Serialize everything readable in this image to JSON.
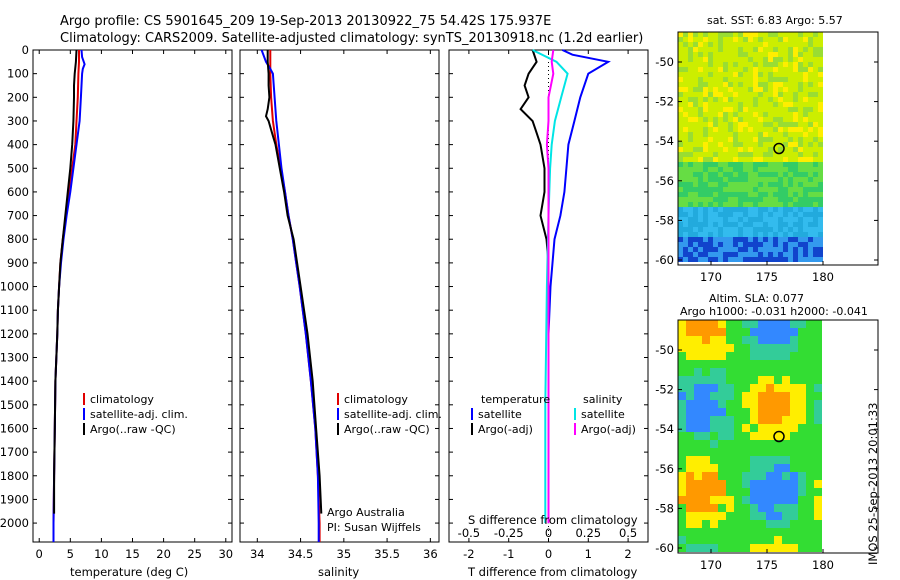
{
  "titles": {
    "line1": "Argo profile: CS 5901645_209 19-Sep-2013 20130922_75 54.42S 175.937E",
    "line2": "Climatology: CARS2009. Satellite-adjusted climatology: synTS_20130918.nc (1.2d earlier)"
  },
  "colors": {
    "climatology": "#e00000",
    "satellite": "#0000ff",
    "argo": "#000000",
    "sat_salinity": "#00e5e5",
    "argo_salinity": "#ff00ff"
  },
  "depth_ticks": [
    "0",
    "100",
    "200",
    "300",
    "400",
    "500",
    "600",
    "700",
    "800",
    "900",
    "1000",
    "1100",
    "1200",
    "1300",
    "1400",
    "1500",
    "1600",
    "1700",
    "1800",
    "1900",
    "2000"
  ],
  "legend": {
    "climatology": "climatology",
    "satellite": "satellite-adj. clim.",
    "argo": "Argo(..raw -QC)"
  },
  "info": {
    "line1": "Argo Australia",
    "line2": "PI: Susan Wijffels"
  },
  "diff_legend": {
    "temperature": "temperature",
    "salinity": "salinity",
    "t_sat": "satellite",
    "t_argo": "Argo(-adj)",
    "s_sat": "satellite",
    "s_argo": "Argo(-adj)"
  },
  "maps": {
    "sst_title": "sat. SST: 6.83 Argo: 5.57",
    "sla_title1": "Altim. SLA: 0.077",
    "sla_title2": "Argo h1000: -0.031 h2000: -0.041",
    "lat_ticks": [
      "-50",
      "-52",
      "-54",
      "-56",
      "-58",
      "-60"
    ],
    "lon_ticks": [
      "170",
      "175",
      "180"
    ]
  },
  "timestamp": "IMOS 25-Sep-2013 20:01:33",
  "chart_data": [
    {
      "type": "line",
      "xlabel": "temperature (deg C)",
      "ylabel": "",
      "xlim": [
        -1,
        31
      ],
      "ylim": [
        2080,
        0
      ],
      "xticks": [
        "0",
        "5",
        "10",
        "15",
        "20",
        "25",
        "30"
      ],
      "series": [
        {
          "name": "climatology",
          "depth": [
            0,
            50,
            100,
            200,
            300,
            400,
            500,
            600,
            700,
            800,
            900,
            1000,
            1100,
            1200,
            1400,
            1600,
            1800,
            2000,
            2080
          ],
          "values": [
            6.4,
            6.4,
            6.3,
            6.2,
            6.0,
            5.8,
            5.3,
            4.8,
            4.3,
            3.8,
            3.4,
            3.2,
            3.0,
            2.9,
            2.6,
            2.5,
            2.4,
            2.3,
            2.3
          ]
        },
        {
          "name": "satellite-adj. clim.",
          "depth": [
            0,
            30,
            60,
            80,
            100,
            200,
            300,
            400,
            500,
            600,
            700,
            800,
            900,
            1000,
            1100,
            1200,
            1400,
            1600,
            1800,
            2000,
            2080
          ],
          "values": [
            6.8,
            6.9,
            7.3,
            7.0,
            6.9,
            6.7,
            6.5,
            6.0,
            5.5,
            5.0,
            4.4,
            3.9,
            3.5,
            3.2,
            3.0,
            2.9,
            2.6,
            2.5,
            2.4,
            2.3,
            2.3
          ]
        },
        {
          "name": "Argo(..raw -QC)",
          "depth": [
            0,
            50,
            100,
            150,
            200,
            300,
            400,
            500,
            600,
            700,
            800,
            900,
            1000,
            1100,
            1200,
            1400,
            1600,
            1800,
            1960
          ],
          "values": [
            6.0,
            5.9,
            5.7,
            5.6,
            5.6,
            5.5,
            5.3,
            5.0,
            4.6,
            4.2,
            3.8,
            3.4,
            3.2,
            3.0,
            2.9,
            2.6,
            2.5,
            2.4,
            2.4
          ]
        }
      ]
    },
    {
      "type": "line",
      "xlabel": "salinity",
      "ylabel": "",
      "xlim": [
        33.8,
        36.1
      ],
      "ylim": [
        2080,
        0
      ],
      "xticks": [
        "34",
        "34.5",
        "35",
        "35.5",
        "36"
      ],
      "series": [
        {
          "name": "climatology",
          "depth": [
            0,
            100,
            200,
            300,
            400,
            500,
            600,
            700,
            800,
            900,
            1000,
            1200,
            1400,
            1600,
            1800,
            2000,
            2080
          ],
          "values": [
            34.15,
            34.15,
            34.16,
            34.18,
            34.22,
            34.27,
            34.32,
            34.36,
            34.41,
            34.45,
            34.49,
            34.56,
            34.62,
            34.67,
            34.7,
            34.72,
            34.72
          ]
        },
        {
          "name": "satellite-adj. clim.",
          "depth": [
            0,
            50,
            80,
            100,
            200,
            300,
            400,
            500,
            600,
            700,
            800,
            900,
            1000,
            1200,
            1400,
            1600,
            1800,
            2000,
            2080
          ],
          "values": [
            34.05,
            34.1,
            34.15,
            34.18,
            34.2,
            34.22,
            34.25,
            34.28,
            34.32,
            34.36,
            34.41,
            34.45,
            34.49,
            34.56,
            34.62,
            34.67,
            34.7,
            34.71,
            34.71
          ]
        },
        {
          "name": "Argo(..raw -QC)",
          "depth": [
            0,
            50,
            100,
            150,
            200,
            250,
            280,
            300,
            350,
            400,
            500,
            600,
            700,
            800,
            900,
            1000,
            1200,
            1400,
            1600,
            1800,
            1960
          ],
          "values": [
            34.12,
            34.12,
            34.13,
            34.13,
            34.14,
            34.12,
            34.1,
            34.13,
            34.17,
            34.21,
            34.26,
            34.31,
            34.35,
            34.42,
            34.46,
            34.5,
            34.58,
            34.64,
            34.68,
            34.72,
            34.74
          ]
        }
      ]
    },
    {
      "type": "line",
      "xlabel": "T difference from climatology",
      "xlabel2": "S difference from climatology",
      "xlim": [
        -2.5,
        2.5
      ],
      "ylim": [
        2080,
        0
      ],
      "xticks": [
        "-2",
        "-1",
        "0",
        "1",
        "2"
      ],
      "xticks_top": [
        "-0.5",
        "-0.25",
        "0",
        "0.25",
        "0.5"
      ],
      "series": [
        {
          "name": "T satellite",
          "depth": [
            0,
            20,
            50,
            100,
            200,
            300,
            400,
            500,
            600,
            700,
            800,
            900,
            1000,
            1200,
            1500,
            2000
          ],
          "values": [
            0.35,
            0.6,
            1.5,
            1.0,
            0.8,
            0.65,
            0.5,
            0.45,
            0.4,
            0.3,
            0.15,
            0.1,
            0.05,
            0.0,
            0.0,
            0.0
          ]
        },
        {
          "name": "T Argo(-adj)",
          "depth": [
            0,
            50,
            100,
            150,
            200,
            250,
            300,
            350,
            400,
            500,
            600,
            700,
            800,
            900,
            1000,
            1200,
            1500,
            2000
          ],
          "values": [
            -0.4,
            -0.3,
            -0.5,
            -0.6,
            -0.5,
            -0.7,
            -0.4,
            -0.3,
            -0.2,
            -0.1,
            -0.1,
            -0.2,
            -0.05,
            0.0,
            0.0,
            0.0,
            0.0,
            0.0
          ]
        },
        {
          "name": "S satellite",
          "depth": [
            0,
            50,
            100,
            200,
            300,
            400,
            500,
            700,
            1000,
            1500,
            2000
          ],
          "values": [
            -0.1,
            0.05,
            0.12,
            0.08,
            0.04,
            0.02,
            0.01,
            0.0,
            -0.01,
            -0.02,
            -0.02
          ]
        },
        {
          "name": "S Argo(-adj)",
          "depth": [
            0,
            50,
            100,
            200,
            300,
            400,
            500,
            700,
            1000,
            1500,
            2000
          ],
          "values": [
            0.03,
            0.02,
            0.03,
            0.0,
            0.0,
            -0.01,
            0.0,
            0.0,
            0.0,
            0.0,
            0.0
          ]
        }
      ]
    }
  ]
}
